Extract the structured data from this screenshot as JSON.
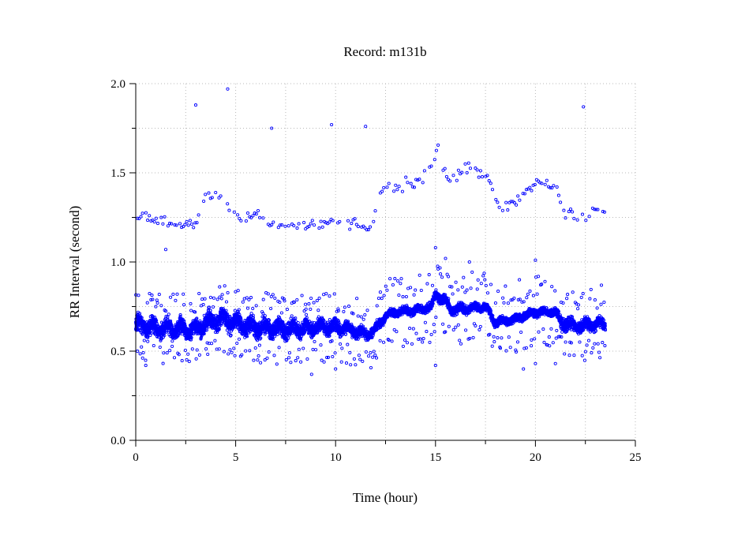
{
  "chart_data": {
    "type": "scatter",
    "title": "Record:  m131b",
    "xlabel": "Time (hour)",
    "ylabel": "RR Interval (second)",
    "xlim": [
      0,
      25
    ],
    "ylim": [
      0.0,
      2.0
    ],
    "xticks": [
      0,
      5,
      10,
      15,
      20,
      25
    ],
    "xtick_labels": [
      "0",
      "5",
      "10",
      "15",
      "20",
      "25"
    ],
    "yticks": [
      0.0,
      0.5,
      1.0,
      1.5,
      2.0
    ],
    "ytick_labels": [
      "0.0",
      "0.5",
      "1.0",
      "1.5",
      "2.0"
    ],
    "grid": true,
    "marker_color": "#0000ff",
    "series": [
      {
        "values_description_free": true,
        "trend": [
          [
            0.0,
            0.65
          ],
          [
            1.0,
            0.63
          ],
          [
            2.0,
            0.62
          ],
          [
            3.0,
            0.62
          ],
          [
            3.5,
            0.66
          ],
          [
            4.5,
            0.68
          ],
          [
            5.5,
            0.64
          ],
          [
            6.5,
            0.63
          ],
          [
            7.5,
            0.62
          ],
          [
            8.5,
            0.63
          ],
          [
            9.5,
            0.64
          ],
          [
            10.5,
            0.63
          ],
          [
            11.5,
            0.59
          ],
          [
            12.0,
            0.62
          ],
          [
            12.5,
            0.7
          ],
          [
            13.0,
            0.72
          ],
          [
            14.0,
            0.73
          ],
          [
            14.8,
            0.75
          ],
          [
            15.0,
            0.82
          ],
          [
            15.5,
            0.78
          ],
          [
            15.8,
            0.73
          ],
          [
            16.5,
            0.74
          ],
          [
            17.5,
            0.75
          ],
          [
            18.0,
            0.66
          ],
          [
            19.0,
            0.68
          ],
          [
            20.0,
            0.72
          ],
          [
            21.0,
            0.72
          ],
          [
            21.3,
            0.66
          ],
          [
            22.0,
            0.64
          ],
          [
            23.0,
            0.65
          ],
          [
            23.5,
            0.65
          ]
        ],
        "spread": [
          [
            0.0,
            0.07
          ],
          [
            2.5,
            0.06
          ],
          [
            3.5,
            0.07
          ],
          [
            6.0,
            0.07
          ],
          [
            9.0,
            0.06
          ],
          [
            11.5,
            0.04
          ],
          [
            12.5,
            0.03
          ],
          [
            14.8,
            0.03
          ],
          [
            15.5,
            0.04
          ],
          [
            17.5,
            0.03
          ],
          [
            18.0,
            0.03
          ],
          [
            21.0,
            0.03
          ],
          [
            21.3,
            0.05
          ],
          [
            23.5,
            0.04
          ]
        ],
        "upper_band": [
          [
            0.0,
            1.25
          ],
          [
            1.0,
            1.24
          ],
          [
            2.0,
            1.22
          ],
          [
            3.0,
            1.2
          ],
          [
            3.5,
            1.38
          ],
          [
            4.3,
            1.38
          ],
          [
            5.0,
            1.25
          ],
          [
            6.0,
            1.28
          ],
          [
            7.0,
            1.2
          ],
          [
            8.0,
            1.2
          ],
          [
            9.0,
            1.22
          ],
          [
            10.0,
            1.22
          ],
          [
            11.0,
            1.22
          ],
          [
            11.7,
            1.18
          ],
          [
            12.3,
            1.4
          ],
          [
            13.0,
            1.43
          ],
          [
            14.0,
            1.44
          ],
          [
            14.9,
            1.55
          ],
          [
            15.1,
            1.64
          ],
          [
            15.6,
            1.45
          ],
          [
            16.5,
            1.52
          ],
          [
            17.5,
            1.5
          ],
          [
            18.2,
            1.3
          ],
          [
            19.0,
            1.33
          ],
          [
            20.0,
            1.45
          ],
          [
            21.0,
            1.42
          ],
          [
            21.5,
            1.28
          ],
          [
            22.5,
            1.25
          ],
          [
            23.5,
            1.3
          ]
        ],
        "outliers": [
          [
            3.0,
            1.88
          ],
          [
            4.6,
            1.97
          ],
          [
            6.8,
            1.75
          ],
          [
            9.8,
            1.77
          ],
          [
            11.5,
            1.76
          ],
          [
            22.4,
            1.87
          ],
          [
            1.5,
            1.07
          ],
          [
            15.0,
            1.08
          ],
          [
            15.5,
            1.02
          ],
          [
            16.7,
            1.0
          ],
          [
            20.0,
            1.01
          ],
          [
            15.0,
            0.42
          ],
          [
            10.0,
            0.4
          ],
          [
            19.4,
            0.4
          ],
          [
            20.0,
            0.43
          ],
          [
            8.8,
            0.37
          ],
          [
            0.5,
            0.42
          ],
          [
            21.0,
            0.43
          ],
          [
            4.2,
            0.86
          ],
          [
            19.2,
            0.9
          ],
          [
            23.3,
            0.87
          ]
        ]
      }
    ]
  }
}
